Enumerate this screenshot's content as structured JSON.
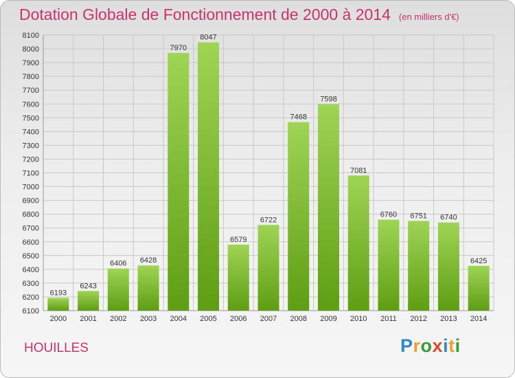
{
  "title": "Dotation Globale de Fonctionnement de 2000 à 2014",
  "subtitle": "(en milliers d'€)",
  "commune": "HOUILLES",
  "logo": {
    "letters": [
      "P",
      "r",
      "o",
      "x",
      "i",
      "t",
      "i"
    ],
    "colors": [
      "#2f86c8",
      "#f0a030",
      "#3a9a3a",
      "#d84a2a",
      "#2f86c8",
      "#f0a030",
      "#3a9a3a"
    ]
  },
  "colors": {
    "bar_top": "#9fd455",
    "bar_bottom": "#5e9e12",
    "title": "#c8326e",
    "grid": "#c8c8c8"
  },
  "chart_data": {
    "type": "bar",
    "title": "Dotation Globale de Fonctionnement de 2000 à 2014",
    "subtitle": "(en milliers d'€)",
    "xlabel": "",
    "ylabel": "",
    "categories": [
      "2000",
      "2001",
      "2002",
      "2003",
      "2004",
      "2005",
      "2006",
      "2007",
      "2008",
      "2009",
      "2010",
      "2011",
      "2012",
      "2013",
      "2014"
    ],
    "values": [
      6193,
      6243,
      6406,
      6428,
      7970,
      8047,
      6579,
      6722,
      7468,
      7598,
      7081,
      6760,
      6751,
      6740,
      6425
    ],
    "ylim": [
      6100,
      8100
    ],
    "ytick_step": 100,
    "grid": true
  }
}
